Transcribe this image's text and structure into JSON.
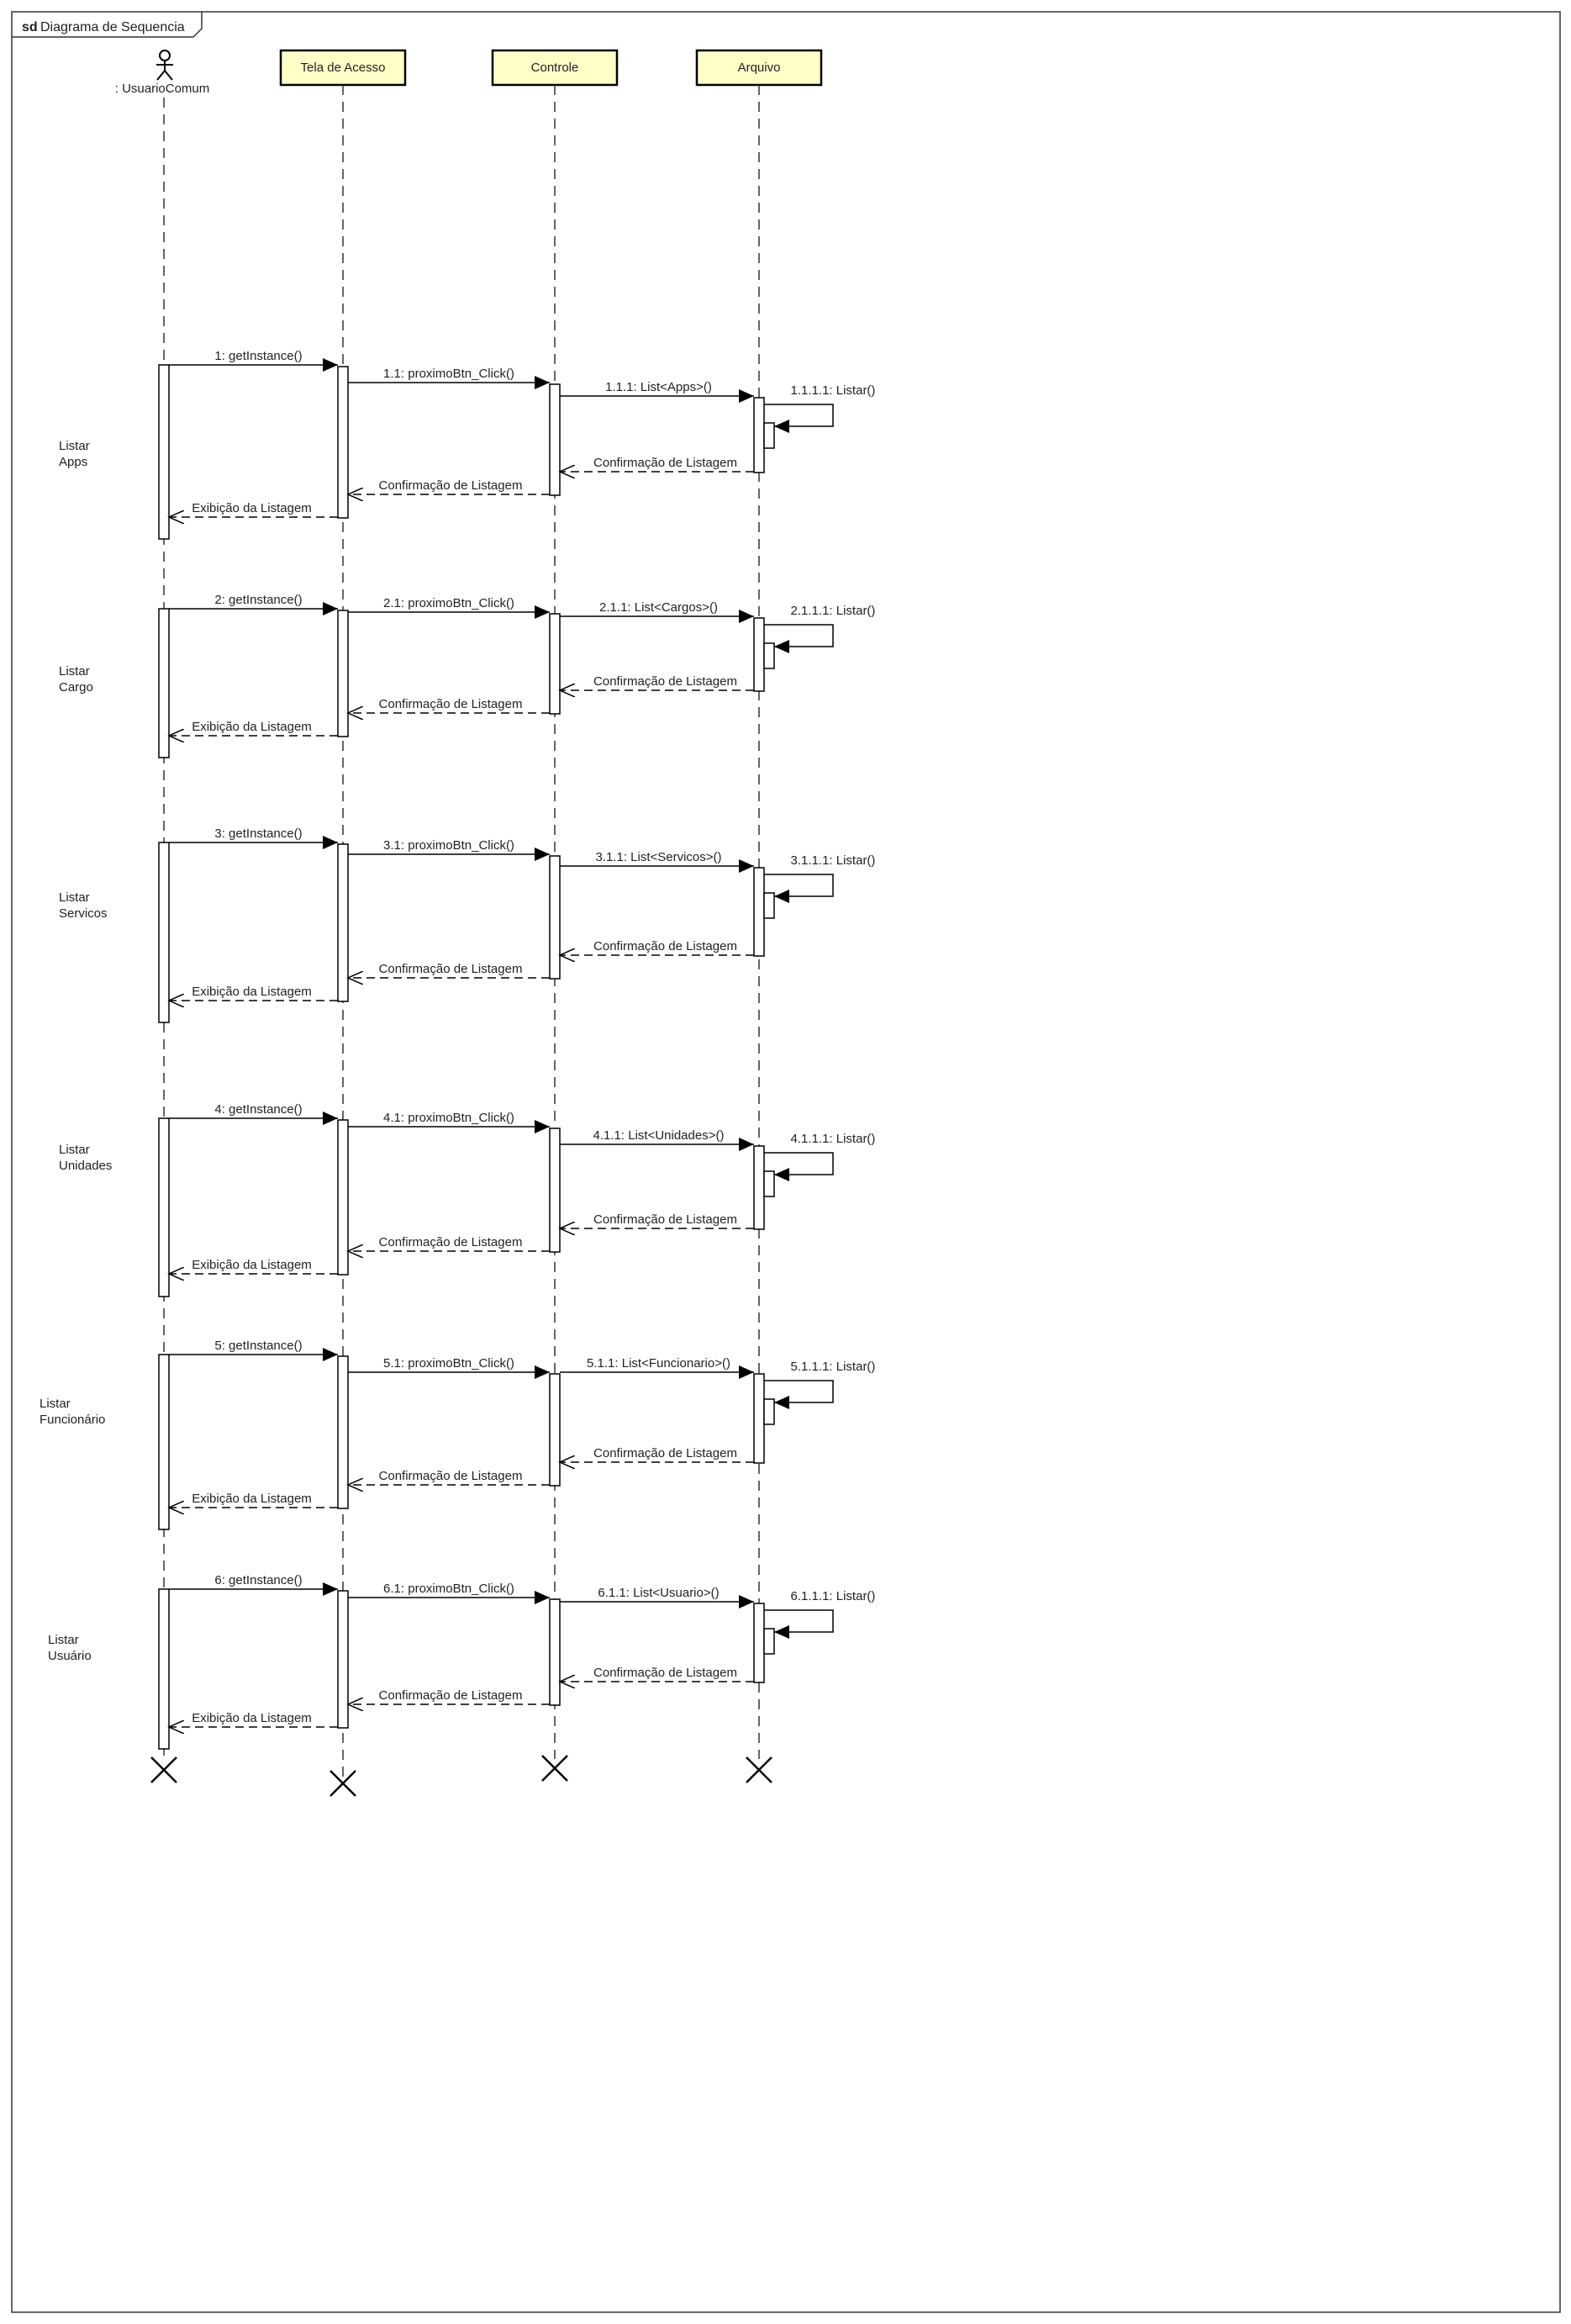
{
  "frame": {
    "keyword": "sd",
    "title": "Diagrama de Sequencia"
  },
  "actor": {
    "name": ": UsuarioComum"
  },
  "lifelines": [
    "Tela de Acesso",
    "Controle",
    "Arquivo"
  ],
  "colors": {
    "lifeline_fill": "#ffffc8",
    "stroke": "#000000"
  },
  "fragments": [
    {
      "label1": "Listar",
      "label2": "Apps",
      "msg_get": "1: getInstance()",
      "msg_click": "1.1: proximoBtn_Click()",
      "msg_list": "1.1.1: List<Apps>()",
      "msg_self": "1.1.1.1: Listar()",
      "ret_arquivo": "Confirmação de Listagem",
      "ret_controle": "Confirmação de Listagem",
      "ret_tela": "Exibição da Listagem"
    },
    {
      "label1": "Listar",
      "label2": "Cargo",
      "msg_get": "2: getInstance()",
      "msg_click": "2.1: proximoBtn_Click()",
      "msg_list": "2.1.1: List<Cargos>()",
      "msg_self": "2.1.1.1: Listar()",
      "ret_arquivo": "Confirmação de Listagem",
      "ret_controle": "Confirmação de Listagem",
      "ret_tela": "Exibição da Listagem"
    },
    {
      "label1": "Listar",
      "label2": "Servicos",
      "msg_get": "3: getInstance()",
      "msg_click": "3.1: proximoBtn_Click()",
      "msg_list": "3.1.1: List<Servicos>()",
      "msg_self": "3.1.1.1: Listar()",
      "ret_arquivo": "Confirmação de Listagem",
      "ret_controle": "Confirmação de Listagem",
      "ret_tela": "Exibição da Listagem"
    },
    {
      "label1": "Listar",
      "label2": "Unidades",
      "msg_get": "4: getInstance()",
      "msg_click": "4.1: proximoBtn_Click()",
      "msg_list": "4.1.1: List<Unidades>()",
      "msg_self": "4.1.1.1: Listar()",
      "ret_arquivo": "Confirmação de Listagem",
      "ret_controle": "Confirmação de Listagem",
      "ret_tela": "Exibição da Listagem"
    },
    {
      "label1": "Listar",
      "label2": "Funcionário",
      "msg_get": "5: getInstance()",
      "msg_click": "5.1: proximoBtn_Click()",
      "msg_list": "5.1.1: List<Funcionario>()",
      "msg_self": "5.1.1.1: Listar()",
      "ret_arquivo": "Confirmação de Listagem",
      "ret_controle": "Confirmação de Listagem",
      "ret_tela": "Exibição da Listagem"
    },
    {
      "label1": "Listar",
      "label2": "Usuário",
      "msg_get": "6: getInstance()",
      "msg_click": "6.1: proximoBtn_Click()",
      "msg_list": "6.1.1: List<Usuario>()",
      "msg_self": "6.1.1.1: Listar()",
      "ret_arquivo": "Confirmação de Listagem",
      "ret_controle": "Confirmação de Listagem",
      "ret_tela": "Exibição da Listagem"
    }
  ]
}
